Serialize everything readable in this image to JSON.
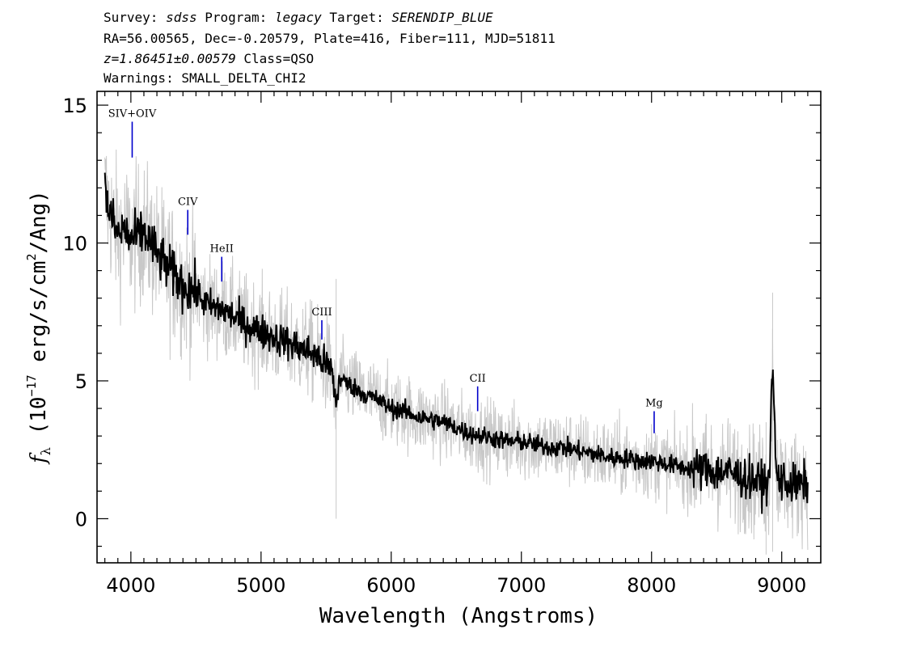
{
  "header": {
    "survey_label": "Survey: ",
    "survey": "sdss",
    "program_label": " Program: ",
    "program": "legacy",
    "target_label": " Target: ",
    "target": "SERENDIP_BLUE",
    "line2": "RA=56.00565, Dec=-0.20579, Plate=416, Fiber=111, MJD=51811",
    "redshift": "z=1.86451±0.00579",
    "class_text": " Class=QSO",
    "warnings": "Warnings: SMALL_DELTA_CHI2"
  },
  "chart_data": {
    "type": "line",
    "xlabel": "Wavelength (Angstroms)",
    "ylabel": "f_λ (10^-17 erg/s/cm^2/Ang)",
    "xlim": [
      3740,
      9300
    ],
    "ylim": [
      -1.6,
      15.5
    ],
    "xticks": [
      4000,
      5000,
      6000,
      7000,
      8000,
      9000
    ],
    "yticks": [
      0,
      5,
      10,
      15
    ],
    "colors": {
      "flux": "#000000",
      "error_band": "#c8c8c8",
      "line_marker": "#0000cc"
    },
    "series": [
      {
        "x": [
          3800,
          3850,
          3900,
          3950,
          4000,
          4100,
          4200,
          4300,
          4400,
          4500,
          4600,
          4700,
          4800,
          4900,
          5000,
          5100,
          5200,
          5300,
          5400,
          5500,
          5550,
          5577,
          5600,
          5700,
          5800,
          5900,
          6000,
          6100,
          6200,
          6300,
          6400,
          6500,
          6600,
          6700,
          6800,
          6900,
          7000,
          7100,
          7200,
          7300,
          7400,
          7500,
          7600,
          7700,
          7800,
          7900,
          8000,
          8100,
          8200,
          8300,
          8400,
          8500,
          8600,
          8700,
          8800,
          8900,
          8930,
          8960,
          9000,
          9100,
          9200
        ],
        "y": [
          11.8,
          10.9,
          10.3,
          10.5,
          10.1,
          10.4,
          9.6,
          9.0,
          8.5,
          8.2,
          7.7,
          7.6,
          7.3,
          7.0,
          6.8,
          6.6,
          6.4,
          6.2,
          6.0,
          5.6,
          5.3,
          4.0,
          5.1,
          4.8,
          4.5,
          4.3,
          4.0,
          3.9,
          3.7,
          3.6,
          3.5,
          3.3,
          3.1,
          3.0,
          2.9,
          2.8,
          2.8,
          2.7,
          2.6,
          2.6,
          2.5,
          2.4,
          2.3,
          2.2,
          2.2,
          2.1,
          2.1,
          2.0,
          1.9,
          1.8,
          1.8,
          1.7,
          1.7,
          1.5,
          1.4,
          1.2,
          5.5,
          1.5,
          1.4,
          1.2,
          1.3
        ]
      }
    ],
    "annotations": [
      {
        "label": "SIV+OIV",
        "x": 4010,
        "y_top": 14.4,
        "y_bottom": 13.1
      },
      {
        "label": "CIV",
        "x": 4437,
        "y_top": 11.2,
        "y_bottom": 10.3
      },
      {
        "label": "HeII",
        "x": 4698,
        "y_top": 9.5,
        "y_bottom": 8.6
      },
      {
        "label": "CIII",
        "x": 5467,
        "y_top": 7.2,
        "y_bottom": 6.5
      },
      {
        "label": "CII",
        "x": 6664,
        "y_top": 4.8,
        "y_bottom": 3.9
      },
      {
        "label": "Mg",
        "x": 8020,
        "y_top": 3.9,
        "y_bottom": 3.1
      }
    ]
  }
}
